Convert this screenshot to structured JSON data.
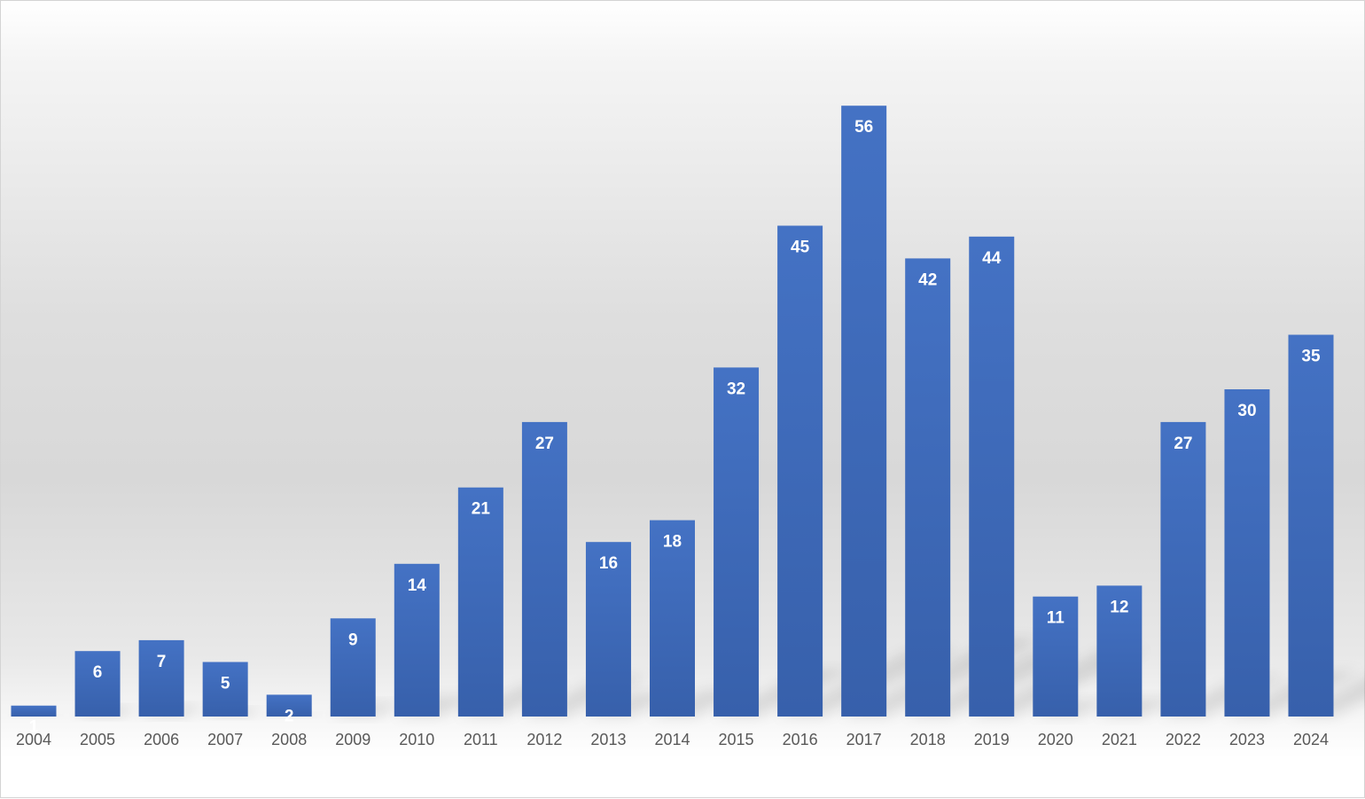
{
  "chart_data": {
    "type": "bar",
    "title": "",
    "xlabel": "",
    "ylabel": "",
    "categories": [
      "2004",
      "2005",
      "2006",
      "2007",
      "2008",
      "2009",
      "2010",
      "2011",
      "2012",
      "2013",
      "2014",
      "2015",
      "2016",
      "2017",
      "2018",
      "2019",
      "2020",
      "2021",
      "2022",
      "2023",
      "2024"
    ],
    "values": [
      1,
      6,
      7,
      5,
      2,
      9,
      14,
      21,
      27,
      16,
      18,
      32,
      45,
      56,
      42,
      44,
      11,
      12,
      27,
      30,
      35
    ],
    "ylim": [
      0,
      56
    ],
    "grid": false,
    "legend": "none",
    "data_labels": true,
    "colors": {
      "bar_top": "#4472C4",
      "bar_bottom": "#3760AB",
      "data_label": "#FFFFFF",
      "tick_label": "#595959"
    }
  }
}
